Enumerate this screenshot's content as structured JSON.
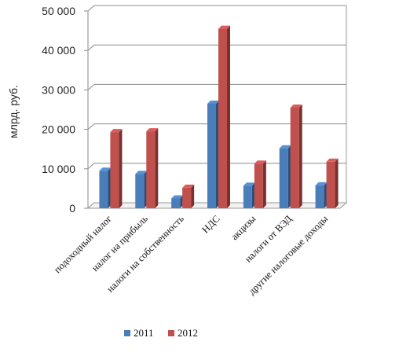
{
  "chart_data": {
    "type": "bar",
    "categories": [
      "подоходный налог",
      "налог на прибыль",
      "налоги на собственность",
      "НДС",
      "акцизы",
      "налоги от ВЭД",
      "другие налоговые доходы"
    ],
    "series": [
      {
        "name": "2011",
        "color": "#4a7ebb",
        "values": [
          9500,
          8700,
          2500,
          26500,
          5700,
          15200,
          5800
        ]
      },
      {
        "name": "2012",
        "color": "#c0504d",
        "values": [
          19300,
          19500,
          5200,
          45500,
          11300,
          25500,
          11800
        ]
      }
    ],
    "ylabel": "млрд. руб.",
    "ylim": [
      0,
      50000
    ],
    "yticks": [
      0,
      10000,
      20000,
      30000,
      40000,
      50000
    ],
    "ytick_labels": [
      "0",
      "10 000",
      "20 000",
      "30 000",
      "40 000",
      "50 000"
    ],
    "grid": true,
    "legend_position": "bottom"
  }
}
